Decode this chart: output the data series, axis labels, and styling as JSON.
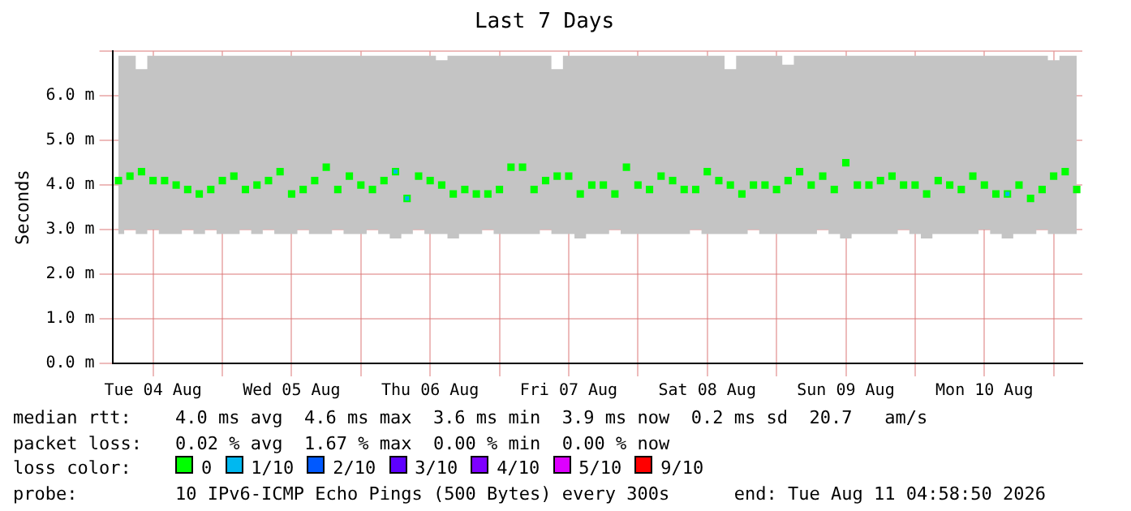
{
  "chart_data": {
    "type": "scatter",
    "title": "Last 7 Days",
    "ylabel": "Seconds",
    "xlim": [
      "2026-08-04T04:58",
      "2026-08-11T04:58"
    ],
    "xticks": [
      {
        "value": "2026-08-04T12:00",
        "label": "Tue 04 Aug"
      },
      {
        "value": "2026-08-05T00:00",
        "label": null
      },
      {
        "value": "2026-08-05T12:00",
        "label": "Wed 05 Aug"
      },
      {
        "value": "2026-08-06T00:00",
        "label": null
      },
      {
        "value": "2026-08-06T12:00",
        "label": "Thu 06 Aug"
      },
      {
        "value": "2026-08-07T00:00",
        "label": null
      },
      {
        "value": "2026-08-07T12:00",
        "label": "Fri 07 Aug"
      },
      {
        "value": "2026-08-08T00:00",
        "label": null
      },
      {
        "value": "2026-08-08T12:00",
        "label": "Sat 08 Aug"
      },
      {
        "value": "2026-08-09T00:00",
        "label": null
      },
      {
        "value": "2026-08-09T12:00",
        "label": "Sun 09 Aug"
      },
      {
        "value": "2026-08-10T00:00",
        "label": null
      },
      {
        "value": "2026-08-10T12:00",
        "label": "Mon 10 Aug"
      },
      {
        "value": "2026-08-11T00:00",
        "label": null
      }
    ],
    "ylim": [
      0,
      7
    ],
    "yticks": [
      {
        "value": 0,
        "label": "0.0 m"
      },
      {
        "value": 1,
        "label": "1.0 m"
      },
      {
        "value": 2,
        "label": "2.0 m"
      },
      {
        "value": 3,
        "label": "3.0 m"
      },
      {
        "value": 4,
        "label": "4.0 m"
      },
      {
        "value": 5,
        "label": "5.0 m"
      },
      {
        "value": 6,
        "label": "6.0 m"
      },
      {
        "value": 7,
        "label": null
      }
    ],
    "grid": true,
    "legend": false,
    "marker": "square",
    "series": [
      {
        "color": "#00ff00",
        "x": [
          "2026-08-04T06:00",
          "2026-08-04T08:00",
          "2026-08-04T10:00",
          "2026-08-04T12:00",
          "2026-08-04T14:00",
          "2026-08-04T16:00",
          "2026-08-04T18:00",
          "2026-08-04T20:00",
          "2026-08-04T22:00",
          "2026-08-05T00:00",
          "2026-08-05T02:00",
          "2026-08-05T04:00",
          "2026-08-05T06:00",
          "2026-08-05T08:00",
          "2026-08-05T10:00",
          "2026-08-05T12:00",
          "2026-08-05T14:00",
          "2026-08-05T16:00",
          "2026-08-05T18:00",
          "2026-08-05T20:00",
          "2026-08-05T22:00",
          "2026-08-06T00:00",
          "2026-08-06T02:00",
          "2026-08-06T04:00",
          "2026-08-06T06:00",
          "2026-08-06T08:00",
          "2026-08-06T10:00",
          "2026-08-06T12:00",
          "2026-08-06T14:00",
          "2026-08-06T16:00",
          "2026-08-06T18:00",
          "2026-08-06T20:00",
          "2026-08-06T22:00",
          "2026-08-07T00:00",
          "2026-08-07T02:00",
          "2026-08-07T04:00",
          "2026-08-07T06:00",
          "2026-08-07T08:00",
          "2026-08-07T10:00",
          "2026-08-07T12:00",
          "2026-08-07T14:00",
          "2026-08-07T16:00",
          "2026-08-07T18:00",
          "2026-08-07T20:00",
          "2026-08-07T22:00",
          "2026-08-08T00:00",
          "2026-08-08T02:00",
          "2026-08-08T04:00",
          "2026-08-08T06:00",
          "2026-08-08T08:00",
          "2026-08-08T10:00",
          "2026-08-08T12:00",
          "2026-08-08T14:00",
          "2026-08-08T16:00",
          "2026-08-08T18:00",
          "2026-08-08T20:00",
          "2026-08-08T22:00",
          "2026-08-09T00:00",
          "2026-08-09T02:00",
          "2026-08-09T04:00",
          "2026-08-09T06:00",
          "2026-08-09T08:00",
          "2026-08-09T10:00",
          "2026-08-09T12:00",
          "2026-08-09T14:00",
          "2026-08-09T16:00",
          "2026-08-09T18:00",
          "2026-08-09T20:00",
          "2026-08-09T22:00",
          "2026-08-10T00:00",
          "2026-08-10T02:00",
          "2026-08-10T04:00",
          "2026-08-10T06:00",
          "2026-08-10T08:00",
          "2026-08-10T10:00",
          "2026-08-10T12:00",
          "2026-08-10T14:00",
          "2026-08-10T16:00",
          "2026-08-10T18:00",
          "2026-08-10T20:00",
          "2026-08-10T22:00",
          "2026-08-11T00:00",
          "2026-08-11T02:00",
          "2026-08-11T04:00"
        ],
        "values": [
          4.1,
          4.2,
          4.3,
          4.1,
          4.1,
          4.0,
          3.9,
          3.8,
          3.9,
          4.1,
          4.2,
          3.9,
          4.0,
          4.1,
          4.3,
          3.8,
          3.9,
          4.1,
          4.4,
          3.9,
          4.2,
          4.0,
          3.9,
          4.1,
          4.3,
          3.7,
          4.2,
          4.1,
          4.0,
          3.8,
          3.9,
          3.8,
          3.8,
          3.9,
          4.4,
          4.4,
          3.9,
          4.1,
          4.2,
          4.2,
          3.8,
          4.0,
          4.0,
          3.8,
          4.4,
          4.0,
          3.9,
          4.2,
          4.1,
          3.9,
          3.9,
          4.3,
          4.1,
          4.0,
          3.8,
          4.0,
          4.0,
          3.9,
          4.1,
          4.3,
          4.0,
          4.2,
          3.9,
          4.5,
          4.0,
          4.0,
          4.1,
          4.2,
          4.0,
          4.0,
          3.8,
          4.1,
          4.0,
          3.9,
          4.2,
          4.0,
          3.8,
          3.8,
          4.0,
          3.7,
          3.9,
          4.2,
          4.3,
          3.9
        ],
        "colors": [
          "#00ff00",
          "#00ff00",
          "#00ff00",
          "#00ff00",
          "#00ff00",
          "#00ff00",
          "#00ff00",
          "#00ff00",
          "#00ff00",
          "#00ff00",
          "#00ff00",
          "#00ff00",
          "#00ff00",
          "#00ff00",
          "#00ff00",
          "#00ff00",
          "#00ff00",
          "#00ff00",
          "#00ff00",
          "#00ff00",
          "#00ff00",
          "#00ff00",
          "#00ff00",
          "#00ff00",
          "#00b8f0",
          "#00b8f0",
          "#00ff00",
          "#00ff00",
          "#00ff00",
          "#00ff00",
          "#00ff00",
          "#00ff00",
          "#00ff00",
          "#00ff00",
          "#00ff00",
          "#00ff00",
          "#00ff00",
          "#00ff00",
          "#00ff00",
          "#00ff00",
          "#00ff00",
          "#00ff00",
          "#00ff00",
          "#00ff00",
          "#00ff00",
          "#00ff00",
          "#00ff00",
          "#00ff00",
          "#00ff00",
          "#00ff00",
          "#00ff00",
          "#00ff00",
          "#00ff00",
          "#00ff00",
          "#00ff00",
          "#00ff00",
          "#00ff00",
          "#00ff00",
          "#00ff00",
          "#00ff00",
          "#00ff00",
          "#00ff00",
          "#00ff00",
          "#00ff00",
          "#00ff00",
          "#00ff00",
          "#00ff00",
          "#00ff00",
          "#00ff00",
          "#00ff00",
          "#00ff00",
          "#00ff00",
          "#00ff00",
          "#00ff00",
          "#00ff00",
          "#00ff00",
          "#00ff00",
          "#00b8f0",
          "#00ff00",
          "#00ff00",
          "#00ff00",
          "#00ff00",
          "#00ff00",
          "#00ff00"
        ],
        "lower": [
          2.9,
          3.0,
          2.9,
          3.0,
          2.9,
          2.9,
          3.0,
          2.9,
          3.0,
          2.9,
          2.9,
          3.0,
          2.9,
          3.0,
          2.9,
          2.9,
          3.0,
          2.9,
          2.9,
          3.0,
          2.9,
          2.9,
          3.0,
          2.9,
          2.8,
          2.9,
          3.0,
          2.9,
          2.9,
          2.8,
          2.9,
          2.9,
          3.0,
          2.9,
          2.9,
          2.9,
          2.9,
          3.0,
          2.9,
          2.9,
          2.8,
          2.9,
          2.9,
          3.0,
          2.9,
          2.9,
          2.9,
          2.9,
          2.9,
          2.9,
          3.0,
          2.9,
          2.9,
          2.9,
          2.9,
          3.0,
          2.9,
          2.9,
          2.9,
          2.9,
          2.9,
          3.0,
          2.9,
          2.8,
          2.9,
          2.9,
          2.9,
          2.9,
          3.0,
          2.9,
          2.8,
          2.9,
          2.9,
          2.9,
          2.9,
          3.0,
          2.9,
          2.8,
          2.9,
          2.9,
          3.0,
          2.9,
          2.9,
          2.9
        ],
        "upper": [
          6.9,
          6.9,
          6.6,
          6.9,
          6.9,
          6.9,
          6.9,
          6.9,
          6.9,
          6.9,
          6.9,
          6.9,
          6.9,
          6.9,
          6.9,
          6.9,
          6.9,
          6.9,
          6.9,
          6.9,
          6.9,
          6.9,
          6.9,
          6.9,
          6.9,
          6.9,
          6.9,
          6.9,
          6.8,
          6.9,
          6.9,
          6.9,
          6.9,
          6.9,
          6.9,
          6.9,
          6.9,
          6.9,
          6.6,
          6.9,
          6.9,
          6.9,
          6.9,
          6.9,
          6.9,
          6.9,
          6.9,
          6.9,
          6.9,
          6.9,
          6.9,
          6.9,
          6.9,
          6.6,
          6.9,
          6.9,
          6.9,
          6.9,
          6.7,
          6.9,
          6.9,
          6.9,
          6.9,
          6.9,
          6.9,
          6.9,
          6.9,
          6.9,
          6.9,
          6.9,
          6.9,
          6.9,
          6.9,
          6.9,
          6.9,
          6.9,
          6.9,
          6.9,
          6.9,
          6.9,
          6.9,
          6.8,
          6.9,
          6.9
        ]
      }
    ],
    "annotations": [
      "median rtt:",
      "4.0 ms avg  4.6 ms max  3.6 ms min  3.9 ms now  0.2 ms sd  20.7   am/s",
      "packet loss:",
      "0.02 % avg  1.67 % max  0.00 % min  0.00 % now",
      "loss color:",
      "0",
      "1/10",
      "2/10",
      "3/10",
      "4/10",
      "5/10",
      "9/10",
      "probe:",
      "10 IPv6-ICMP Echo Pings (500 Bytes) every 300s",
      "end: Tue Aug 11 04:58:50 2026"
    ]
  }
}
